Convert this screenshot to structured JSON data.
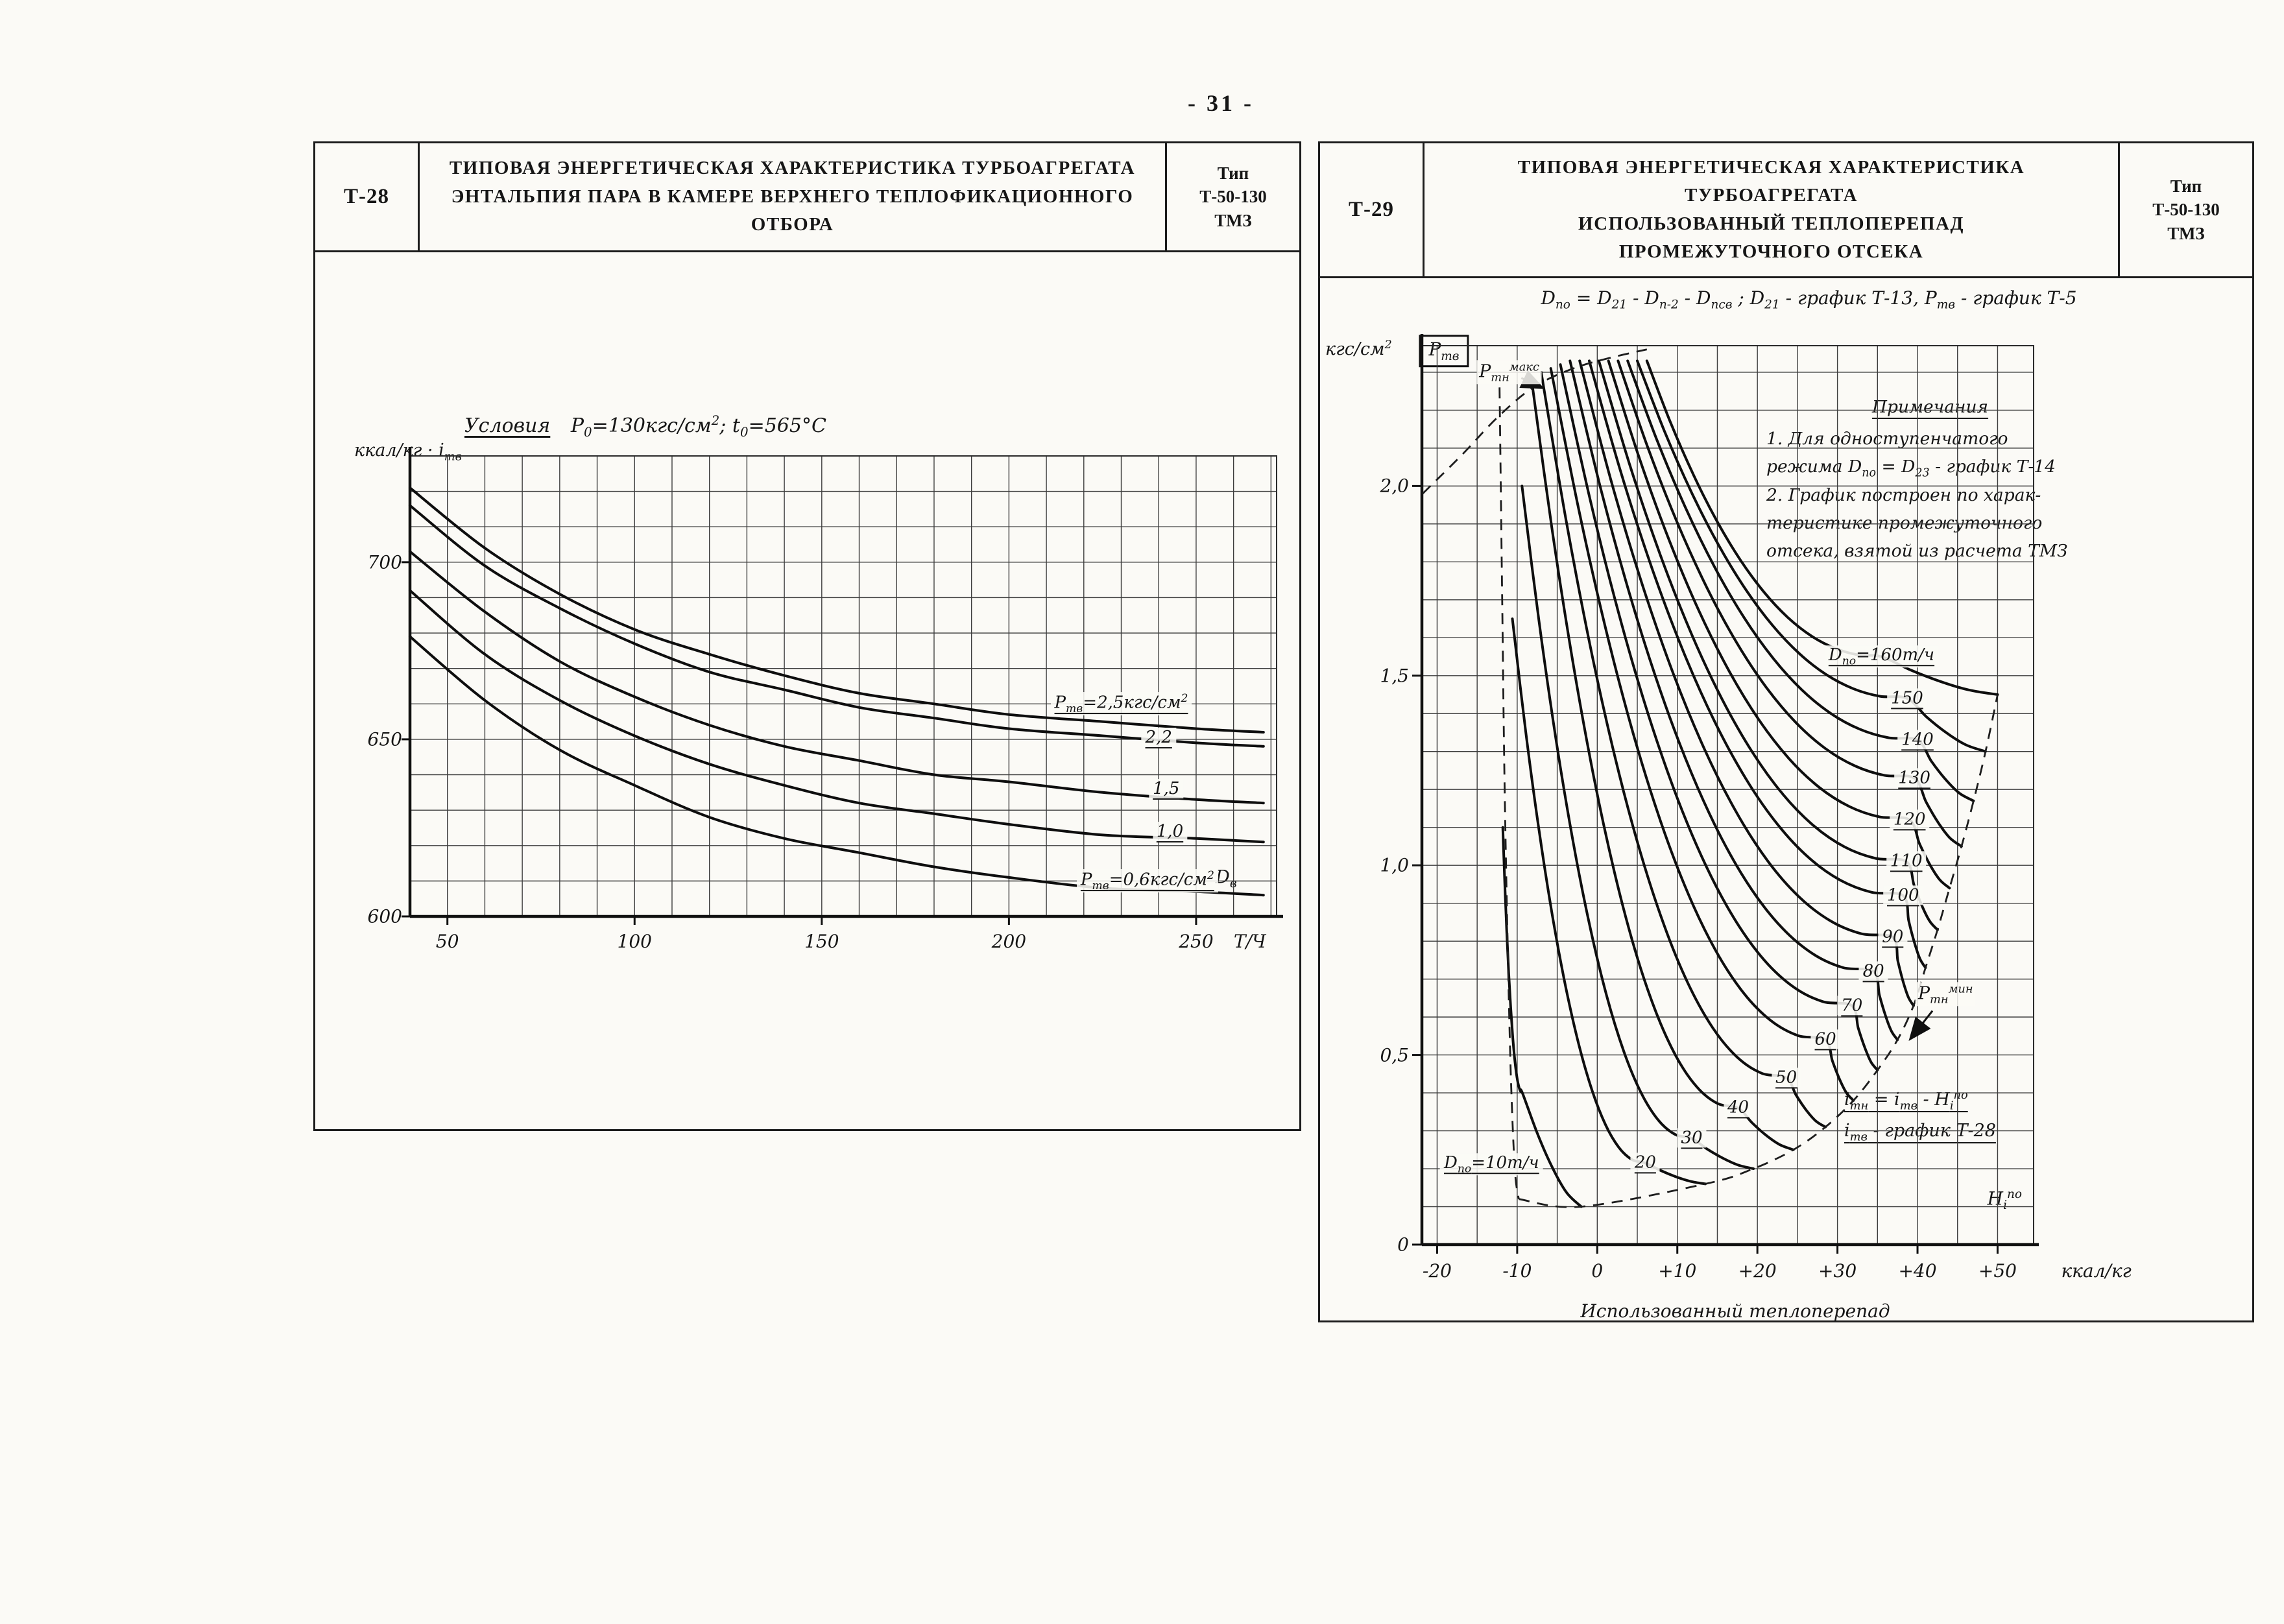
{
  "page": {
    "number": "- 31 -"
  },
  "left_panel": {
    "code": "Т-28",
    "title_lines": [
      "ТИПОВАЯ ЭНЕРГЕТИЧЕСКАЯ ХАРАКТЕРИСТИКА ТУРБОАГРЕГАТА",
      "ЭНТАЛЬПИЯ ПАРА В КАМЕРЕ ВЕРХНЕГО ТЕПЛОФИКАЦИОННОГО ОТБОРА"
    ],
    "type_lines": [
      "Тип",
      "Т-50-130",
      "ТМЗ"
    ],
    "condition_label": "Условия",
    "condition_value": "Р_{0}=130кгс/см^{2};  t_{0}=565°С"
  },
  "right_panel": {
    "code": "Т-29",
    "title_lines": [
      "ТИПОВАЯ ЭНЕРГЕТИЧЕСКАЯ ХАРАКТЕРИСТИКА",
      "ТУРБОАГРЕГАТА",
      "ИСПОЛЬЗОВАННЫЙ ТЕПЛОПЕРЕПАД",
      "ПРОМЕЖУТОЧНОГО ОТСЕКА"
    ],
    "type_lines": [
      "Тип",
      "Т-50-130",
      "ТМЗ"
    ],
    "formula": "D_{по} = D_{21} - D_{п-2} - D_{псв} ;   D_{21} - график  Т-13,   Р_{тв} - график  Т-5",
    "notes": {
      "title": "Примечания",
      "lines": [
        "1. Для  одноступенчатого",
        "режима  D_{по} = D_{23} - график Т-14",
        "2. График  построен  по харак-",
        "теристике  промежуточного",
        "отсека, взятой  из  расчета ТМЗ"
      ]
    },
    "formulas_box": [
      "i_{тн} = i_{тв} - Н_{i}^{по}",
      "i_{тв} - график  Т-28"
    ],
    "x_caption": "Использованный   теплоперепад"
  },
  "chart_data": [
    {
      "type": "line",
      "title": "Энтальпия пара в камере верхнего теплофикационного отбора",
      "xlabel": "D_{в}, Т/Ч",
      "ylabel": "i_{тв}, ккал/кг",
      "x_symbol": "D_{в}",
      "y_symbol": "i_{тв}",
      "x_unit": "Т/Ч",
      "y_unit": "ккал/кг",
      "xlim": [
        40,
        271.5
      ],
      "ylim": [
        600,
        730
      ],
      "x_ticks": [
        50,
        100,
        150,
        200,
        250
      ],
      "y_ticks": [
        600,
        650,
        700
      ],
      "grid_step": {
        "x": 10,
        "y": 10
      },
      "x": [
        40,
        60,
        80,
        100,
        120,
        140,
        160,
        180,
        200,
        225,
        250,
        268
      ],
      "series": [
        {
          "name": "Р_{тв}=2,5кгс/см^{2}",
          "values": [
            721,
            704,
            691,
            681,
            674,
            668,
            663,
            660,
            657,
            655,
            653,
            652
          ],
          "label_at": [
            230,
            660
          ]
        },
        {
          "name": "2,2",
          "values": [
            716,
            699,
            687,
            677,
            669,
            664,
            659,
            656,
            653,
            651,
            649,
            648
          ],
          "label_at": [
            240,
            650.5
          ]
        },
        {
          "name": "1,5",
          "values": [
            703,
            686,
            672,
            662,
            654,
            648,
            644,
            640,
            638,
            635,
            633,
            632
          ],
          "label_at": [
            242,
            636
          ]
        },
        {
          "name": "1,0",
          "values": [
            692,
            674,
            661,
            651,
            643,
            637,
            632,
            629,
            626,
            623,
            622,
            621
          ],
          "label_at": [
            243,
            624
          ]
        },
        {
          "name": "Р_{тв}=0,6кгс/см^{2}",
          "values": [
            679,
            661,
            647,
            637,
            628,
            622,
            618,
            614,
            611,
            608,
            607,
            606
          ],
          "label_at": [
            237,
            610
          ]
        }
      ]
    },
    {
      "type": "line",
      "title": "Использованный теплоперепад промежуточного отсека",
      "xlabel": "Использованный теплоперепад, ккал/кг",
      "ylabel": "Р_{тв}, кгс/см^{2}",
      "x_symbol": "Н_{i}^{по}",
      "y_symbol": "Р_{тв}",
      "x_unit": "ккал/кг",
      "y_unit": "кгс/см^{2}",
      "xlim": [
        -21.9,
        54.5
      ],
      "ylim": [
        0,
        2.37
      ],
      "x_ticks": [
        {
          "label": "-20",
          "v": -20
        },
        {
          "label": "-10",
          "v": -10
        },
        {
          "label": "0",
          "v": 0
        },
        {
          "label": "+10",
          "v": 10
        },
        {
          "label": "+20",
          "v": 20
        },
        {
          "label": "+30",
          "v": 30
        },
        {
          "label": "+40",
          "v": 40
        },
        {
          "label": "+50",
          "v": 50
        }
      ],
      "y_ticks": [
        {
          "label": "0",
          "v": 0
        },
        {
          "label": "0,5",
          "v": 0.5
        },
        {
          "label": "1,0",
          "v": 1
        },
        {
          "label": "1,5",
          "v": 1.5
        },
        {
          "label": "2,0",
          "v": 2
        }
      ],
      "grid_step": {
        "x": 5,
        "y": 0.1
      },
      "series": [
        {
          "name": "D_{по}=160т/ч",
          "D": 160,
          "start": [
            6.2,
            2.33
          ],
          "label_at": [
            35.5,
            1.55
          ],
          "end": [
            50,
            1.45
          ]
        },
        {
          "name": "150",
          "D": 150,
          "start": [
            5.0,
            2.33
          ],
          "label_at": [
            38.7,
            1.44
          ],
          "end": [
            48.5,
            1.3
          ]
        },
        {
          "name": "140",
          "D": 140,
          "start": [
            3.8,
            2.33
          ],
          "label_at": [
            40.0,
            1.33
          ],
          "end": [
            47,
            1.17
          ]
        },
        {
          "name": "130",
          "D": 130,
          "start": [
            2.6,
            2.33
          ],
          "label_at": [
            39.6,
            1.23
          ],
          "end": [
            45.5,
            1.05
          ]
        },
        {
          "name": "120",
          "D": 120,
          "start": [
            1.4,
            2.33
          ],
          "label_at": [
            39.0,
            1.12
          ],
          "end": [
            44,
            0.94
          ]
        },
        {
          "name": "110",
          "D": 110,
          "start": [
            0.2,
            2.33
          ],
          "label_at": [
            38.6,
            1.01
          ],
          "end": [
            42.5,
            0.83
          ]
        },
        {
          "name": "100",
          "D": 100,
          "start": [
            -1.0,
            2.33
          ],
          "label_at": [
            38.2,
            0.92
          ],
          "end": [
            41,
            0.73
          ]
        },
        {
          "name": "90",
          "D": 90,
          "start": [
            -2.2,
            2.33
          ],
          "label_at": [
            36.9,
            0.81
          ],
          "end": [
            39.5,
            0.63
          ]
        },
        {
          "name": "80",
          "D": 80,
          "start": [
            -3.4,
            2.33
          ],
          "label_at": [
            34.5,
            0.72
          ],
          "end": [
            37.5,
            0.54
          ]
        },
        {
          "name": "70",
          "D": 70,
          "start": [
            -4.6,
            2.32
          ],
          "label_at": [
            31.8,
            0.63
          ],
          "end": [
            35,
            0.46
          ]
        },
        {
          "name": "60",
          "D": 60,
          "start": [
            -5.8,
            2.31
          ],
          "label_at": [
            28.5,
            0.54
          ],
          "end": [
            32,
            0.38
          ]
        },
        {
          "name": "50",
          "D": 50,
          "start": [
            -7.0,
            2.3
          ],
          "label_at": [
            23.6,
            0.44
          ],
          "end": [
            28.5,
            0.31
          ]
        },
        {
          "name": "40",
          "D": 40,
          "start": [
            -8.2,
            2.28
          ],
          "label_at": [
            17.6,
            0.36
          ],
          "end": [
            24.5,
            0.25
          ]
        },
        {
          "name": "30",
          "D": 30,
          "start": [
            -9.4,
            2.0
          ],
          "label_at": [
            11.8,
            0.28
          ],
          "end": [
            19.5,
            0.2
          ]
        },
        {
          "name": "20",
          "D": 20,
          "start": [
            -10.6,
            1.65
          ],
          "label_at": [
            6.0,
            0.215
          ],
          "end": [
            13.5,
            0.16
          ]
        },
        {
          "name": "D_{по}=10т/ч",
          "D": 10,
          "start": [
            -11.8,
            1.1
          ],
          "label_at": [
            -13.2,
            0.21
          ],
          "label_on_curve": false,
          "end": [
            -2,
            0.1
          ]
        }
      ],
      "envelopes": {
        "max": [
          [
            -21.8,
            1.98
          ],
          [
            -17,
            2.08
          ],
          [
            -12.5,
            2.18
          ],
          [
            -8,
            2.26
          ],
          [
            -3,
            2.31
          ],
          [
            2,
            2.34
          ],
          [
            6.2,
            2.36
          ]
        ],
        "left": [
          [
            -12.2,
            2.26
          ],
          [
            -11.9,
            1.75
          ],
          [
            -11.6,
            1.25
          ],
          [
            -11.2,
            0.8
          ],
          [
            -10.8,
            0.45
          ],
          [
            -10.3,
            0.2
          ],
          [
            -9.8,
            0.12
          ]
        ]
      },
      "annotations": {
        "pmax": {
          "text": "Р_{тн}^{макс}",
          "at": [
            -11,
            2.3
          ],
          "arrow_to": [
            -7,
            2.26
          ]
        },
        "pmin": {
          "text": "Р_{тн}^{мин}",
          "at": [
            43.5,
            0.66
          ],
          "arrow_to": [
            39.2,
            0.545
          ]
        }
      }
    }
  ]
}
